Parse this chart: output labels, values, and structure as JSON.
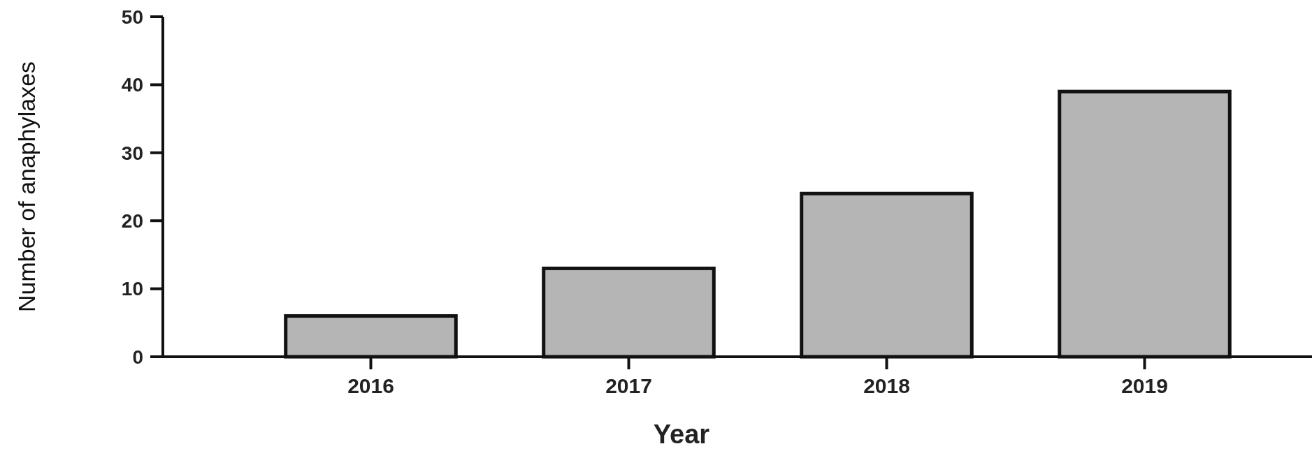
{
  "chart_data": {
    "type": "bar",
    "xlabel": "Year",
    "ylabel": "Number of anaphylaxes",
    "categories": [
      "2016",
      "2017",
      "2018",
      "2019"
    ],
    "values": [
      6,
      13,
      24,
      39
    ],
    "color": "#b5b5b5",
    "ylim": [
      0,
      50
    ],
    "yticks": [
      0,
      10,
      20,
      30,
      40,
      50
    ],
    "grid": false
  }
}
